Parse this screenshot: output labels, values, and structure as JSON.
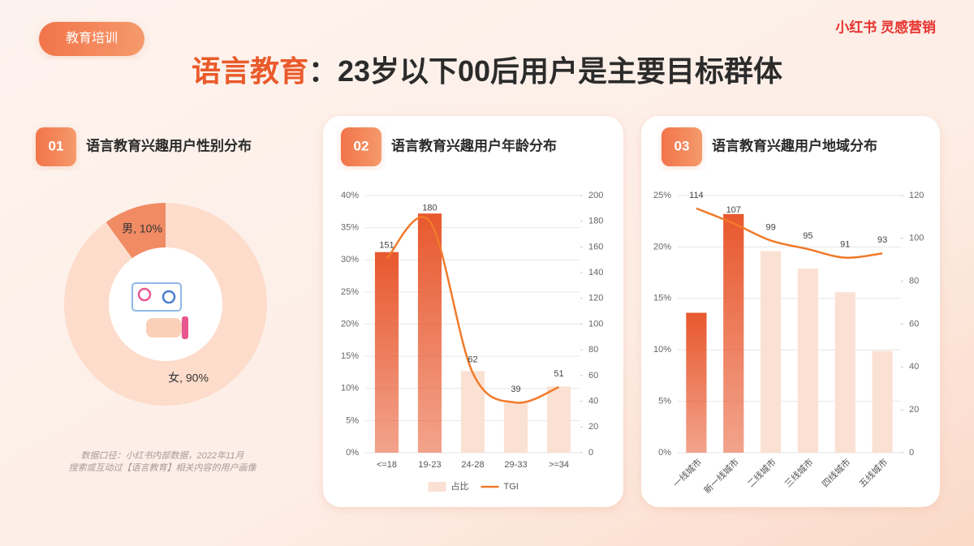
{
  "header": {
    "tag": "教育培训",
    "brand": "小红书 灵感营销",
    "title_highlight": "语言教育",
    "title_rest": "：23岁以下00后用户是主要目标群体"
  },
  "notes": [
    "数据口径：小红书内部数据，2022年11月",
    "搜索或互动过【语言教育】相关内容的用户画像"
  ],
  "chart_data": [
    {
      "type": "pie",
      "number": "01",
      "title": "语言教育兴趣用户性别分布",
      "categories": [
        "男",
        "女"
      ],
      "values": [
        10,
        90
      ],
      "value_labels": [
        "男, 10%",
        "女, 90%"
      ],
      "colors": [
        "#f08b64",
        "#fddccb"
      ]
    },
    {
      "type": "bar",
      "number": "02",
      "title": "语言教育兴趣用户年龄分布",
      "categories": [
        "<=18",
        "19-23",
        "24-28",
        "29-33",
        ">=34"
      ],
      "series": [
        {
          "name": "占比",
          "color": "#fbe1d3",
          "colors": [
            "#e8582e",
            "#e8582e",
            "#fbe1d3",
            "#fbe1d3",
            "#fbe1d3"
          ],
          "values": [
            31.2,
            37.2,
            12.7,
            7.8,
            10.3
          ]
        },
        {
          "name": "TGI",
          "color": "#f07a2a",
          "axis": "y2",
          "values": [
            151,
            180,
            62,
            39,
            51
          ]
        }
      ],
      "ylim": [
        0,
        40
      ],
      "yticks": [
        {
          "value": 0,
          "label": "0%"
        },
        {
          "value": 5,
          "label": "5%"
        },
        {
          "value": 10,
          "label": "10%"
        },
        {
          "value": 15,
          "label": "15%"
        },
        {
          "value": 20,
          "label": "20%"
        },
        {
          "value": 25,
          "label": "25%"
        },
        {
          "value": 30,
          "label": "30%"
        },
        {
          "value": 35,
          "label": "35%"
        },
        {
          "value": 40,
          "label": "40%"
        }
      ],
      "y2lim": [
        0,
        200
      ],
      "y2ticks": [
        0,
        20,
        40,
        60,
        80,
        100,
        120,
        140,
        160,
        180,
        200
      ],
      "grid": true,
      "legend": "bottom"
    },
    {
      "type": "bar",
      "number": "03",
      "title": "语言教育兴趣用户地域分布",
      "categories": [
        "一线城市",
        "新一线城市",
        "二线城市",
        "三线城市",
        "四线城市",
        "五线城市"
      ],
      "series": [
        {
          "color": "#fbe1d3",
          "colors": [
            "#e8582e",
            "#e8582e",
            "#fbe1d3",
            "#fbe1d3",
            "#fbe1d3",
            "#fbe1d3"
          ],
          "values": [
            13.6,
            23.2,
            19.6,
            17.9,
            15.6,
            9.9
          ]
        },
        {
          "color": "#f07a2a",
          "axis": "y2",
          "values": [
            114,
            107,
            99,
            95,
            91,
            93
          ]
        }
      ],
      "ylim": [
        0,
        25
      ],
      "yticks": [
        {
          "value": 0,
          "label": "0%"
        },
        {
          "value": 5,
          "label": "5%"
        },
        {
          "value": 10,
          "label": "10%"
        },
        {
          "value": 15,
          "label": "15%"
        },
        {
          "value": 20,
          "label": "20%"
        },
        {
          "value": 25,
          "label": "25%"
        }
      ],
      "y2lim": [
        0,
        120
      ],
      "y2ticks": [
        0,
        20,
        40,
        60,
        80,
        100,
        120
      ],
      "grid": true
    }
  ]
}
